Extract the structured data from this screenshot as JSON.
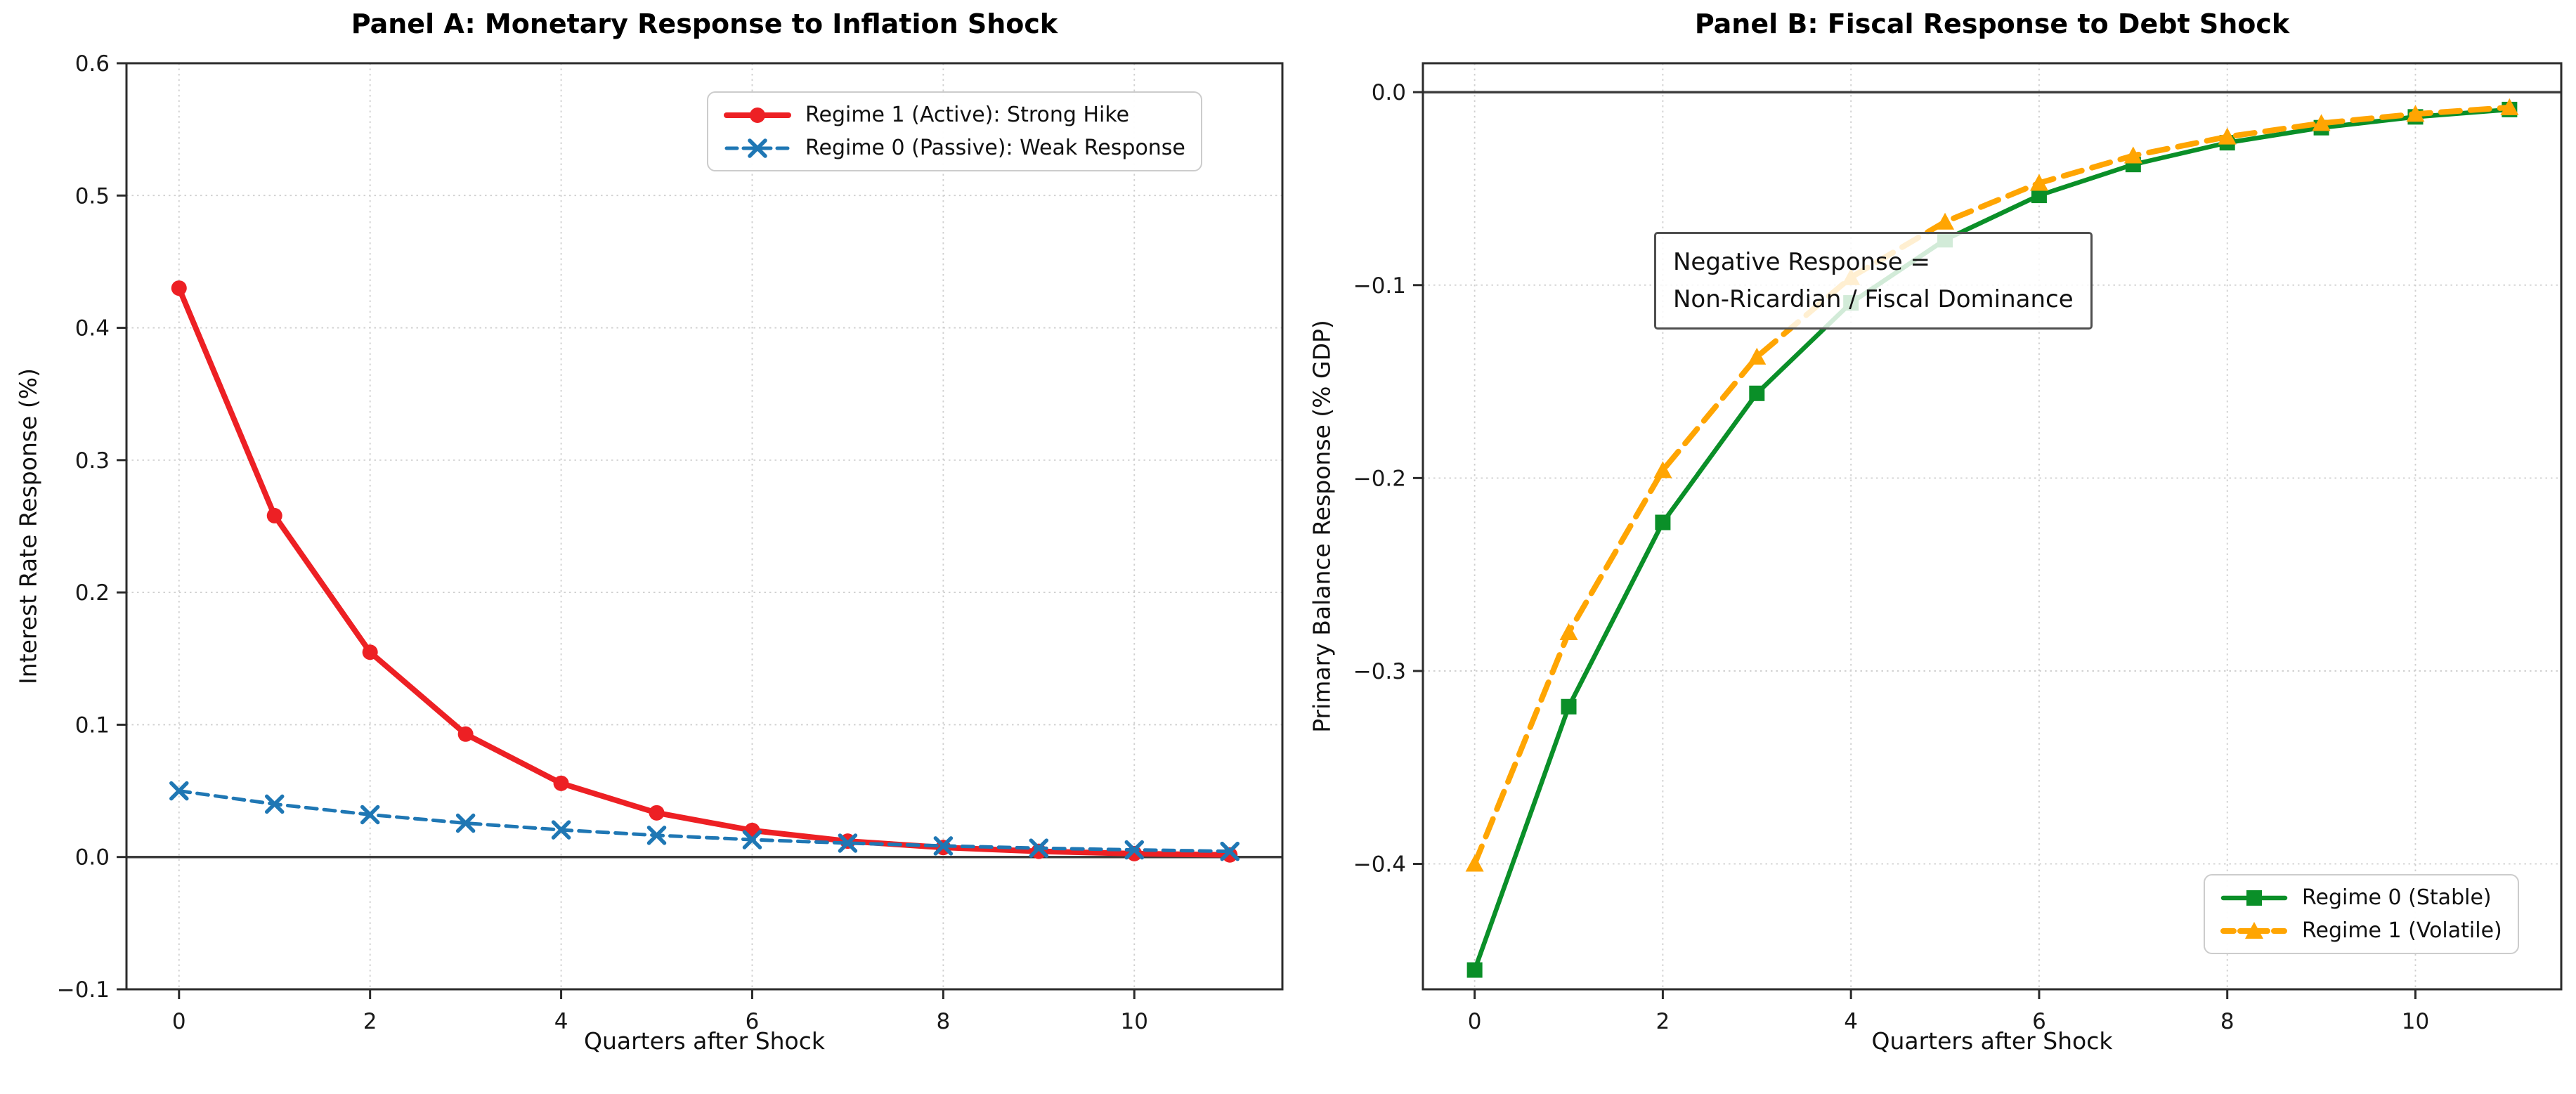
{
  "chart_data": [
    {
      "type": "line",
      "title": "Panel A: Monetary Response to Inflation Shock",
      "xlabel": "Quarters after Shock",
      "ylabel": "Interest Rate Response (%)",
      "x": [
        0,
        1,
        2,
        3,
        4,
        5,
        6,
        7,
        8,
        9,
        10,
        11
      ],
      "xlim": [
        -0.55,
        11.55
      ],
      "ylim": [
        -0.1,
        0.6
      ],
      "xticks": [
        0,
        2,
        4,
        6,
        8,
        10
      ],
      "xticklabels": [
        "0",
        "2",
        "4",
        "6",
        "8",
        "10"
      ],
      "yticks": [
        -0.1,
        0.0,
        0.1,
        0.2,
        0.3,
        0.4,
        0.5,
        0.6
      ],
      "yticklabels": [
        "−0.1",
        "0.0",
        "0.1",
        "0.2",
        "0.3",
        "0.4",
        "0.5",
        "0.6"
      ],
      "grid": true,
      "zero_line": true,
      "legend": {
        "position": "upper-right"
      },
      "series": [
        {
          "name": "Regime 1 (Active): Strong Hike",
          "color": "#ed2024",
          "line": "solid",
          "marker": "circle",
          "values": [
            0.43,
            0.258,
            0.1548,
            0.0929,
            0.0557,
            0.0334,
            0.0201,
            0.012,
            0.0072,
            0.0043,
            0.0026,
            0.0016
          ]
        },
        {
          "name": "Regime 0 (Passive): Weak Response",
          "color": "#1f77b4",
          "line": "dashed",
          "marker": "x",
          "values": [
            0.05,
            0.04,
            0.032,
            0.0256,
            0.0205,
            0.0164,
            0.0131,
            0.0105,
            0.0084,
            0.0067,
            0.0054,
            0.0043
          ]
        }
      ]
    },
    {
      "type": "line",
      "title": "Panel B: Fiscal Response to Debt Shock",
      "xlabel": "Quarters after Shock",
      "ylabel": "Primary Balance Response (% GDP)",
      "x": [
        0,
        1,
        2,
        3,
        4,
        5,
        6,
        7,
        8,
        9,
        10,
        11
      ],
      "xlim": [
        -0.55,
        11.55
      ],
      "ylim": [
        -0.465,
        0.015
      ],
      "xticks": [
        0,
        2,
        4,
        6,
        8,
        10
      ],
      "xticklabels": [
        "0",
        "2",
        "4",
        "6",
        "8",
        "10"
      ],
      "yticks": [
        -0.4,
        -0.3,
        -0.2,
        -0.1,
        0.0
      ],
      "yticklabels": [
        "−0.4",
        "−0.3",
        "−0.2",
        "−0.1",
        "0.0"
      ],
      "grid": true,
      "zero_line": true,
      "legend": {
        "position": "lower-right"
      },
      "annotation": {
        "line1": "Negative Response =",
        "line2": "Non-Ricardian / Fiscal Dominance"
      },
      "series": [
        {
          "name": "Regime 0 (Stable)",
          "color": "#0a8f28",
          "line": "solid",
          "marker": "square",
          "values": [
            -0.455,
            -0.3185,
            -0.223,
            -0.1561,
            -0.1092,
            -0.0765,
            -0.0535,
            -0.0375,
            -0.0262,
            -0.0184,
            -0.0128,
            -0.009
          ]
        },
        {
          "name": "Regime 1 (Volatile)",
          "color": "#ffa502",
          "line": "dashed",
          "marker": "triangle",
          "values": [
            -0.4,
            -0.28,
            -0.196,
            -0.1372,
            -0.096,
            -0.0672,
            -0.0471,
            -0.0329,
            -0.0231,
            -0.0161,
            -0.0113,
            -0.0079
          ]
        }
      ]
    }
  ]
}
